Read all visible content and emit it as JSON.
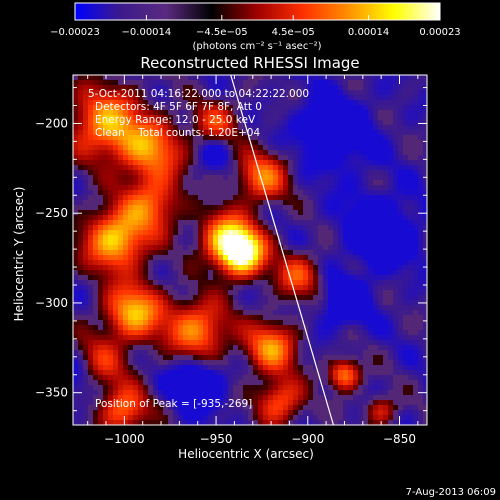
{
  "chart_data": {
    "type": "heatmap",
    "title": "Reconstructed RHESSI Image",
    "xlabel": "Heliocentric X (arcsec)",
    "ylabel": "Heliocentric Y (arcsec)",
    "xlim": [
      -1028,
      -835
    ],
    "ylim": [
      -368,
      -173
    ],
    "x_ticks": [
      -1000,
      -950,
      -900,
      -850
    ],
    "x_tick_labels": [
      "−1000",
      "−950",
      "−900",
      "−850"
    ],
    "y_ticks": [
      -350,
      -300,
      -250,
      -200
    ],
    "y_tick_labels": [
      "−350",
      "−300",
      "−250",
      "−200"
    ],
    "colorbar": {
      "min": -0.00023,
      "max": 0.00023,
      "tick_values": [
        -0.00023,
        -0.00014,
        -4.5e-05,
        4.5e-05,
        0.00014,
        0.00023
      ],
      "tick_labels": [
        "−0.00023",
        "−0.00014",
        "−4.5e−05",
        "4.5e−05",
        "0.00014",
        "0.00023"
      ],
      "units_label": "(photons cm⁻² s⁻¹ asec⁻²)",
      "colormap": [
        "#0000ff",
        "#3c1a8c",
        "#5a2a80",
        "#000000",
        "#a00000",
        "#ff3000",
        "#ff9000",
        "#ffff00",
        "#ffffff"
      ]
    },
    "info_lines": [
      "5-Oct-2011 04:16:22.000 to 04:22:22.000",
      "Detectors: 4F 5F 6F 7F 8F, Att 0",
      "Energy Range: 12.0 - 25.0 keV",
      "Clean    Total counts: 1.20E+04"
    ],
    "peak_label": "Position of Peak = [-935,-269]",
    "peak": {
      "x": -935,
      "y": -269
    },
    "limb_line": [
      [
        -942,
        -173
      ],
      [
        -886,
        -368
      ]
    ],
    "blobs": [
      {
        "x": -936,
        "y": -272,
        "amp": 1.0,
        "s": 9
      },
      {
        "x": -945,
        "y": -263,
        "amp": 0.6,
        "s": 10
      },
      {
        "x": -1010,
        "y": -200,
        "amp": 0.65,
        "s": 14
      },
      {
        "x": -985,
        "y": -215,
        "amp": 0.55,
        "s": 12
      },
      {
        "x": -1005,
        "y": -265,
        "amp": 0.75,
        "s": 12
      },
      {
        "x": -985,
        "y": -245,
        "amp": 0.5,
        "s": 11
      },
      {
        "x": -995,
        "y": -305,
        "amp": 0.7,
        "s": 11
      },
      {
        "x": -960,
        "y": -315,
        "amp": 0.6,
        "s": 12
      },
      {
        "x": -1015,
        "y": -335,
        "amp": 0.45,
        "s": 11
      },
      {
        "x": -920,
        "y": -325,
        "amp": 0.6,
        "s": 10
      },
      {
        "x": -925,
        "y": -230,
        "amp": 0.55,
        "s": 10
      },
      {
        "x": -905,
        "y": -285,
        "amp": 0.45,
        "s": 9
      },
      {
        "x": -1000,
        "y": -360,
        "amp": 0.55,
        "s": 9
      },
      {
        "x": -880,
        "y": -340,
        "amp": 0.6,
        "s": 6
      },
      {
        "x": -915,
        "y": -355,
        "amp": 0.5,
        "s": 9
      },
      {
        "x": -950,
        "y": -200,
        "amp": 0.4,
        "s": 9
      },
      {
        "x": -860,
        "y": -360,
        "amp": 0.35,
        "s": 6
      }
    ],
    "dips": [
      {
        "x": -885,
        "y": -205,
        "amp": 0.35,
        "s": 14
      },
      {
        "x": -860,
        "y": -260,
        "amp": 0.35,
        "s": 14
      },
      {
        "x": -960,
        "y": -345,
        "amp": 0.4,
        "s": 10
      },
      {
        "x": -1025,
        "y": -340,
        "amp": 0.3,
        "s": 10
      },
      {
        "x": -950,
        "y": -215,
        "amp": 0.2,
        "s": 7
      },
      {
        "x": -880,
        "y": -300,
        "amp": 0.3,
        "s": 10
      }
    ],
    "grid": false
  },
  "footer": {
    "timestamp": "7-Aug-2013 06:09"
  }
}
